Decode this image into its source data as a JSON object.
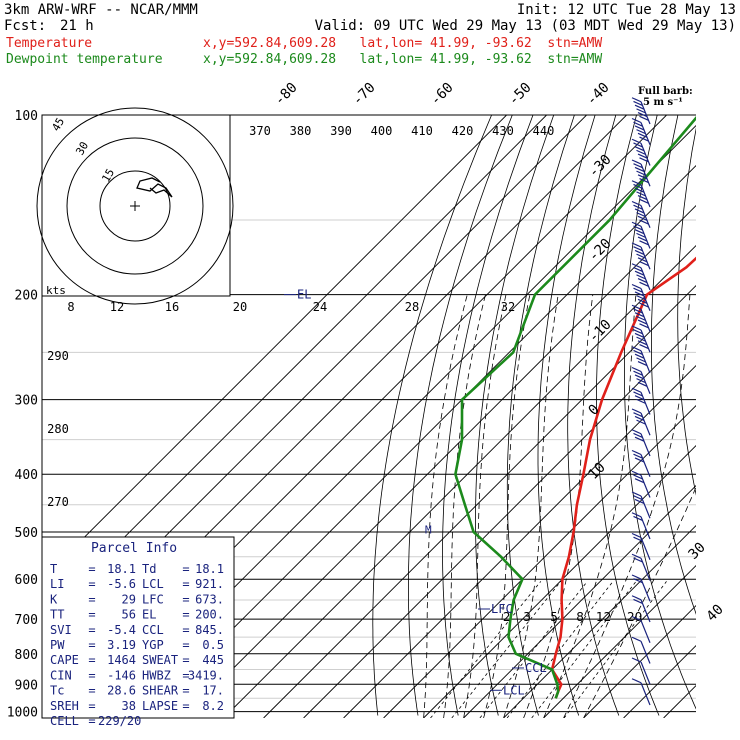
{
  "header": {
    "model": "3km ARW-WRF -- NCAR/MMM",
    "init": "Init: 12 UTC Tue 28 May 13",
    "fcst_label": "Fcst:",
    "fcst_value": "21 h",
    "valid": "Valid: 09 UTC Wed 29 May 13 (03 MDT Wed 29 May 13)",
    "temp_label": "Temperature",
    "dew_label": "Dewpoint temperature",
    "temp_info": "x,y=592.84,609.28   lat,lon= 41.99, -93.62  stn=AMW",
    "dew_info": "x,y=592.84,609.28   lat,lon= 41.99, -93.62  stn=AMW",
    "barb_title": "Full barb:",
    "barb_units": "5 m s⁻¹"
  },
  "colors": {
    "temperature": "#e0201a",
    "dewpoint": "#1c8a1c",
    "accent": "#1a237e",
    "grid": "#000000"
  },
  "chart_data": {
    "type": "line",
    "title": "",
    "xlabel": "",
    "ylabel": "",
    "pressure_labels": [
      "100",
      "200",
      "300",
      "400",
      "500",
      "600",
      "700",
      "800",
      "900",
      "1000"
    ],
    "pressure_levels": [
      100,
      200,
      300,
      400,
      500,
      600,
      700,
      800,
      900,
      1000
    ],
    "isotherm_labels": [
      "-80",
      "-70",
      "-60",
      "-50",
      "-40",
      "-30",
      "-20",
      "-10",
      "0",
      "10",
      "20",
      "30",
      "40"
    ],
    "theta_labels": [
      "370",
      "380",
      "390",
      "400",
      "410",
      "420",
      "430",
      "440"
    ],
    "theta_labels_left": [
      "290",
      "280",
      "270"
    ],
    "mixing_ratio_labels": [
      "2",
      "3",
      "5",
      "8",
      "12",
      "20"
    ],
    "annotations": {
      "el": "EL",
      "lfc": "LFC",
      "ccl": "CCL",
      "lcl": "LCL",
      "m": "M"
    },
    "series": [
      {
        "name": "Temperature",
        "pressure": [
          100,
          120,
          150,
          180,
          200,
          250,
          300,
          350,
          400,
          450,
          500,
          550,
          600,
          650,
          700,
          750,
          800,
          850,
          900,
          925,
          950
        ],
        "temperature": [
          -61,
          -60,
          -56,
          -57,
          -60,
          -52,
          -45,
          -38,
          -31,
          -25,
          -19,
          -14,
          -10,
          -5,
          0,
          4,
          7,
          10,
          16,
          17,
          18.1
        ]
      },
      {
        "name": "Dewpoint temperature",
        "pressure": [
          100,
          150,
          200,
          250,
          300,
          350,
          400,
          450,
          500,
          550,
          600,
          650,
          700,
          750,
          800,
          850,
          900,
          925,
          950
        ],
        "dewpoint": [
          -92,
          -88,
          -88,
          -79,
          -80,
          -70,
          -63,
          -53,
          -44,
          -31,
          -20,
          -17,
          -13,
          -9,
          -3,
          10,
          15,
          17,
          18.1
        ]
      }
    ],
    "hodograph": {
      "rings": [
        "15",
        "30",
        "45"
      ],
      "axis_labels": [
        "8",
        "12",
        "16",
        "20",
        "24",
        "28",
        "32"
      ],
      "unit": "kts"
    },
    "wind_barbs": {
      "direction_note": "from south-southwest",
      "speeds_ms": [
        40,
        45,
        45,
        50,
        55,
        55,
        55,
        50,
        45,
        40,
        35,
        30,
        25,
        25,
        20,
        20,
        18,
        17,
        15,
        15,
        14,
        12,
        12,
        11,
        10,
        9,
        8,
        7,
        5
      ]
    }
  },
  "parcel": {
    "title": "Parcel Info",
    "rows": [
      [
        "T",
        "18.1",
        "Td",
        "18.1"
      ],
      [
        "LI",
        "-5.6",
        "LCL",
        "921."
      ],
      [
        "K",
        "29",
        "LFC",
        "673."
      ],
      [
        "TT",
        "56",
        "EL",
        "200."
      ],
      [
        "SVI",
        "-5.4",
        "CCL",
        "845."
      ],
      [
        "PW",
        "3.19",
        "YGP",
        "0.5"
      ],
      [
        "CAPE",
        "1464",
        "SWEAT",
        "445"
      ],
      [
        "CIN",
        "-146",
        "HWBZ",
        "3419."
      ],
      [
        "Tc",
        "28.6",
        "SHEAR",
        "17."
      ],
      [
        "SREH",
        "38",
        "LAPSE",
        "8.2"
      ],
      [
        "CELL",
        "229/20",
        "",
        ""
      ]
    ]
  }
}
